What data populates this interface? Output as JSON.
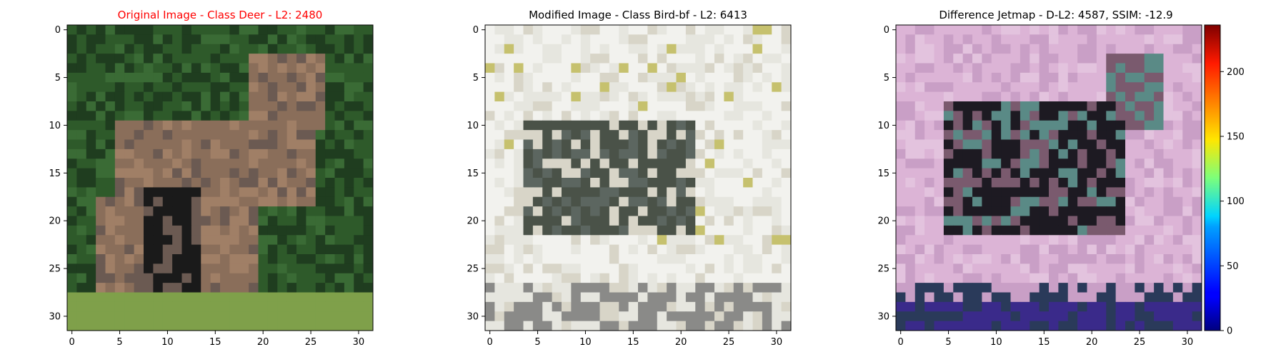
{
  "chart_data": [
    {
      "type": "heatmap",
      "title": "Original Image - Class Deer - L2: 2480",
      "title_color": "#ff0000",
      "xlim": [
        -0.5,
        31.5
      ],
      "ylim": [
        31.5,
        -0.5
      ],
      "xticks": [
        0,
        5,
        10,
        15,
        20,
        25,
        30
      ],
      "yticks": [
        0,
        5,
        10,
        15,
        20,
        25,
        30
      ],
      "image_size": [
        32,
        32
      ],
      "content": "deer photo",
      "palette": [
        "#1f3d1f",
        "#2e5a2a",
        "#3a6b35",
        "#8a6e5a",
        "#a07f66",
        "#6b5a52",
        "#1a1a1a",
        "#7fa04a"
      ]
    },
    {
      "type": "heatmap",
      "title": "Modified Image - Class Bird-bf - L2: 6413",
      "title_color": "#000000",
      "xlim": [
        -0.5,
        31.5
      ],
      "ylim": [
        31.5,
        -0.5
      ],
      "xticks": [
        0,
        5,
        10,
        15,
        20,
        25,
        30
      ],
      "yticks": [
        0,
        5,
        10,
        15,
        20,
        25,
        30
      ],
      "image_size": [
        32,
        32
      ],
      "content": "perturbed image",
      "palette": [
        "#f2f2ee",
        "#e6e6df",
        "#d8d5c8",
        "#c9c7a8",
        "#4a5248",
        "#5c6660",
        "#8a8a88",
        "#c6c16e"
      ]
    },
    {
      "type": "heatmap",
      "title": "Difference Jetmap - D-L2: 4587, SSIM: -12.9",
      "title_color": "#000000",
      "xlim": [
        -0.5,
        31.5
      ],
      "ylim": [
        31.5,
        -0.5
      ],
      "xticks": [
        0,
        5,
        10,
        15,
        20,
        25,
        30
      ],
      "yticks": [
        0,
        5,
        10,
        15,
        20,
        25,
        30
      ],
      "image_size": [
        32,
        32
      ],
      "content": "difference map",
      "palette": [
        "#dcb4d6",
        "#c99fc6",
        "#e3c3de",
        "#7a5a6e",
        "#1d1a22",
        "#5a8a86",
        "#2a3a5a",
        "#3a2a8a"
      ],
      "colorbar": {
        "colormap": "jet",
        "range": [
          0,
          236
        ],
        "ticks": [
          0,
          50,
          100,
          150,
          200
        ],
        "tick_labels": [
          "0",
          "50",
          "100",
          "150",
          "200"
        ]
      }
    }
  ]
}
